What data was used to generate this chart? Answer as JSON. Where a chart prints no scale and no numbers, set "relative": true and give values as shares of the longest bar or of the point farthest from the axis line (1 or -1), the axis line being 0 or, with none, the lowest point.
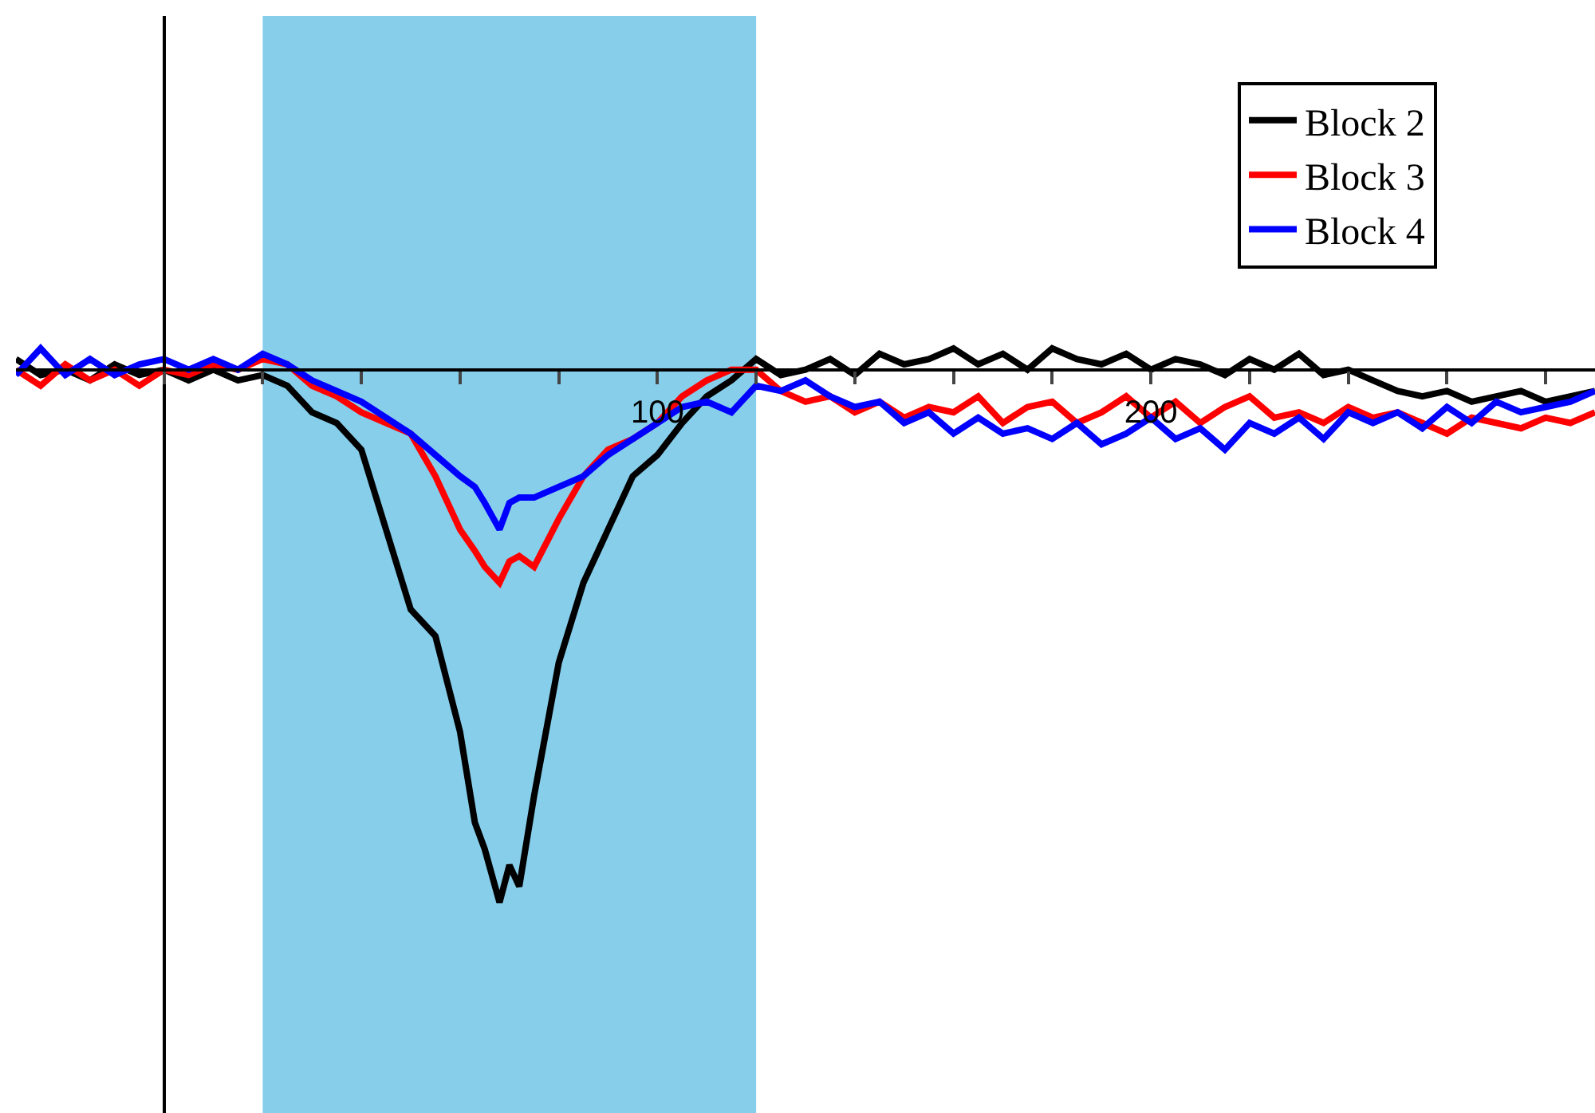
{
  "chart_data": {
    "type": "line",
    "relative": true,
    "x": [
      -30,
      -25,
      -20,
      -15,
      -10,
      -5,
      0,
      5,
      10,
      15,
      20,
      25,
      30,
      35,
      40,
      45,
      50,
      55,
      60,
      63,
      65,
      68,
      70,
      72,
      75,
      80,
      85,
      90,
      95,
      100,
      105,
      110,
      115,
      120,
      125,
      130,
      135,
      140,
      145,
      150,
      155,
      160,
      165,
      170,
      175,
      180,
      185,
      190,
      195,
      200,
      205,
      210,
      215,
      220,
      225,
      230,
      235,
      240,
      245,
      250,
      255,
      260,
      265,
      270,
      275,
      280,
      285,
      290
    ],
    "xlim": [
      -30,
      290
    ],
    "xticks": [
      {
        "value": 0,
        "label": null
      },
      {
        "value": 20,
        "label": null
      },
      {
        "value": 40,
        "label": null
      },
      {
        "value": 60,
        "label": null
      },
      {
        "value": 80,
        "label": null
      },
      100,
      {
        "value": 120,
        "label": null
      },
      {
        "value": 140,
        "label": null
      },
      {
        "value": 160,
        "label": null
      },
      {
        "value": 180,
        "label": null
      },
      200,
      {
        "value": 220,
        "label": null
      },
      {
        "value": 240,
        "label": null
      },
      {
        "value": 260,
        "label": null
      },
      {
        "value": 280,
        "label": null
      }
    ],
    "series": [
      {
        "name": "Block 2",
        "color": "#000000",
        "values": [
          0.02,
          -0.01,
          0.0,
          -0.02,
          0.01,
          -0.01,
          0.0,
          -0.02,
          0.0,
          -0.02,
          -0.01,
          -0.03,
          -0.08,
          -0.1,
          -0.15,
          -0.3,
          -0.45,
          -0.5,
          -0.68,
          -0.85,
          -0.9,
          -1.0,
          -0.93,
          -0.97,
          -0.8,
          -0.55,
          -0.4,
          -0.3,
          -0.2,
          -0.16,
          -0.1,
          -0.05,
          -0.02,
          0.02,
          -0.01,
          0.0,
          0.02,
          -0.01,
          0.03,
          0.01,
          0.02,
          0.04,
          0.01,
          0.03,
          0.0,
          0.04,
          0.02,
          0.01,
          0.03,
          0.0,
          0.02,
          0.01,
          -0.01,
          0.02,
          0.0,
          0.03,
          -0.01,
          0.0,
          -0.02,
          -0.04,
          -0.05,
          -0.04,
          -0.06,
          -0.05,
          -0.04,
          -0.06,
          -0.05,
          -0.04
        ]
      },
      {
        "name": "Block 3",
        "color": "#ff0000",
        "values": [
          0.0,
          -0.03,
          0.01,
          -0.02,
          0.0,
          -0.03,
          0.0,
          -0.01,
          0.01,
          0.0,
          0.02,
          0.01,
          -0.03,
          -0.05,
          -0.08,
          -0.1,
          -0.12,
          -0.2,
          -0.3,
          -0.34,
          -0.37,
          -0.4,
          -0.36,
          -0.35,
          -0.37,
          -0.28,
          -0.2,
          -0.15,
          -0.13,
          -0.1,
          -0.05,
          -0.02,
          0.0,
          0.0,
          -0.04,
          -0.06,
          -0.05,
          -0.08,
          -0.06,
          -0.09,
          -0.07,
          -0.08,
          -0.05,
          -0.1,
          -0.07,
          -0.06,
          -0.1,
          -0.08,
          -0.05,
          -0.09,
          -0.06,
          -0.1,
          -0.07,
          -0.05,
          -0.09,
          -0.08,
          -0.1,
          -0.07,
          -0.09,
          -0.08,
          -0.1,
          -0.12,
          -0.09,
          -0.1,
          -0.11,
          -0.09,
          -0.1,
          -0.08
        ]
      },
      {
        "name": "Block 4",
        "color": "#0000ff",
        "values": [
          -0.01,
          0.04,
          -0.01,
          0.02,
          -0.01,
          0.01,
          0.02,
          0.0,
          0.02,
          0.0,
          0.03,
          0.01,
          -0.02,
          -0.04,
          -0.06,
          -0.09,
          -0.12,
          -0.16,
          -0.2,
          -0.22,
          -0.25,
          -0.3,
          -0.25,
          -0.24,
          -0.24,
          -0.22,
          -0.2,
          -0.16,
          -0.13,
          -0.1,
          -0.07,
          -0.06,
          -0.08,
          -0.03,
          -0.04,
          -0.02,
          -0.05,
          -0.07,
          -0.06,
          -0.1,
          -0.08,
          -0.12,
          -0.09,
          -0.12,
          -0.11,
          -0.13,
          -0.1,
          -0.14,
          -0.12,
          -0.09,
          -0.13,
          -0.11,
          -0.15,
          -0.1,
          -0.12,
          -0.09,
          -0.13,
          -0.08,
          -0.1,
          -0.08,
          -0.11,
          -0.07,
          -0.1,
          -0.06,
          -0.08,
          -0.07,
          -0.06,
          -0.04
        ]
      }
    ],
    "bands": [
      {
        "axis": "x",
        "from": 20,
        "to": 120,
        "color": "#87ceeb"
      }
    ],
    "legend": "top right",
    "line_style": "solid"
  }
}
